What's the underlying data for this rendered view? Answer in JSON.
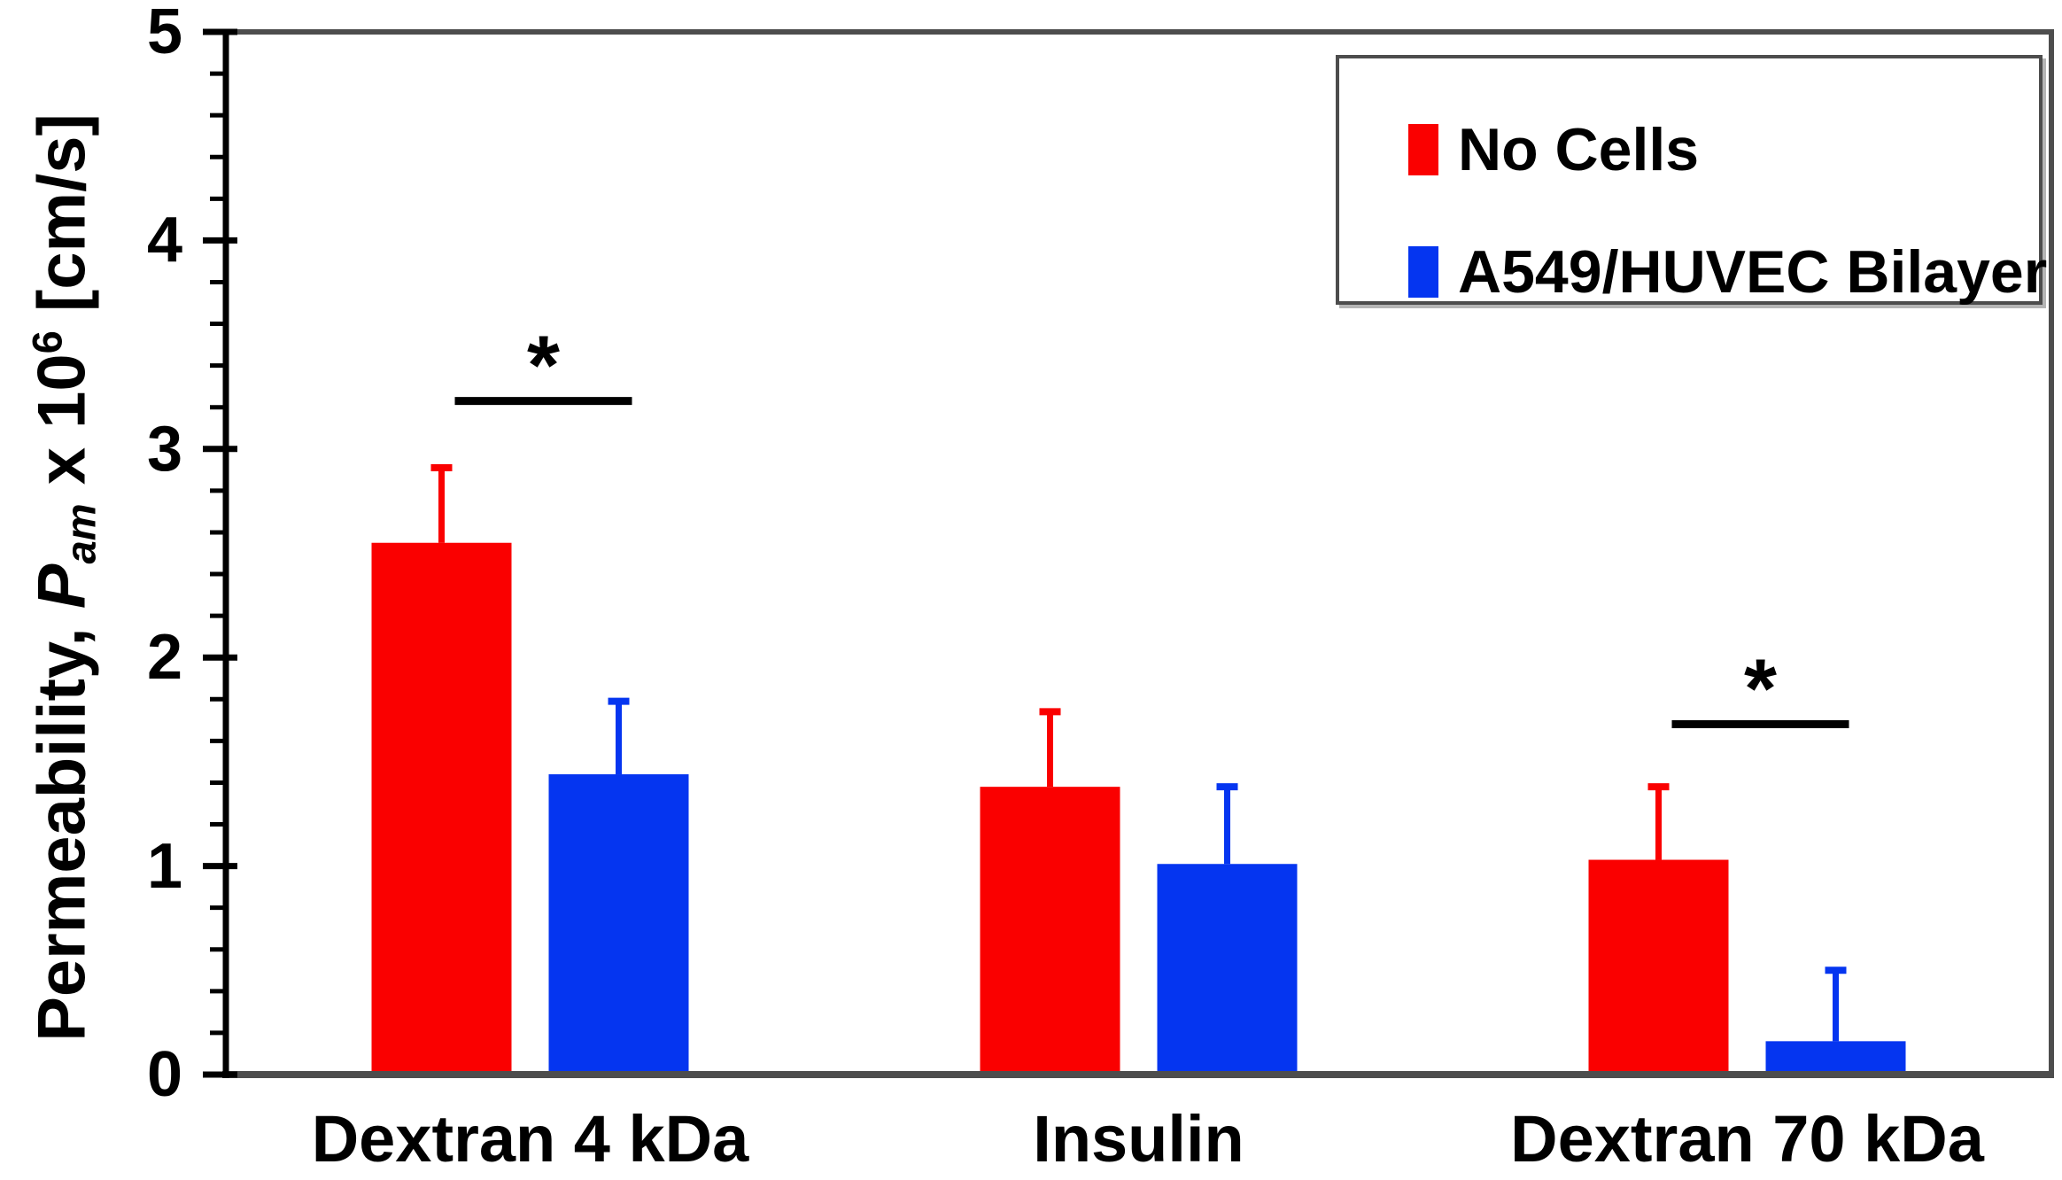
{
  "figure": {
    "background": "#ffffff",
    "axis_color": "#000000",
    "frame_color": "#4d4d4d",
    "sig_marker_color": "#000000"
  },
  "ylabel": {
    "prefix": "Permeability, ",
    "symbol": "P",
    "subscript": "am",
    "times": " x 10",
    "exponent": "6",
    "unit": " [cm/s]"
  },
  "chart_data": {
    "type": "bar",
    "title": "",
    "xlabel": "",
    "ylabel": "Permeability, P_am x 10^6 [cm/s]",
    "categories": [
      "Dextran 4 kDa",
      "Insulin",
      "Dextran 70 kDa"
    ],
    "series": [
      {
        "name": "No Cells",
        "color": "#fa0000",
        "values": [
          2.55,
          1.38,
          1.03
        ],
        "errors_plus": [
          0.36,
          0.36,
          0.35
        ]
      },
      {
        "name": "A549/HUVEC Bilayer",
        "color": "#0535f0",
        "values": [
          1.44,
          1.01,
          0.16
        ],
        "errors_plus": [
          0.35,
          0.37,
          0.34
        ]
      }
    ],
    "ylim": [
      0,
      5
    ],
    "y_major_ticks": [
      0,
      1,
      2,
      3,
      4,
      5
    ],
    "y_minor_step": 0.2,
    "grid": false,
    "legend_position": "top-right",
    "significance": [
      {
        "category_index": 0,
        "marker": "*",
        "line_value": 3.23
      },
      {
        "category_index": 2,
        "marker": "*",
        "line_value": 1.68
      }
    ]
  }
}
